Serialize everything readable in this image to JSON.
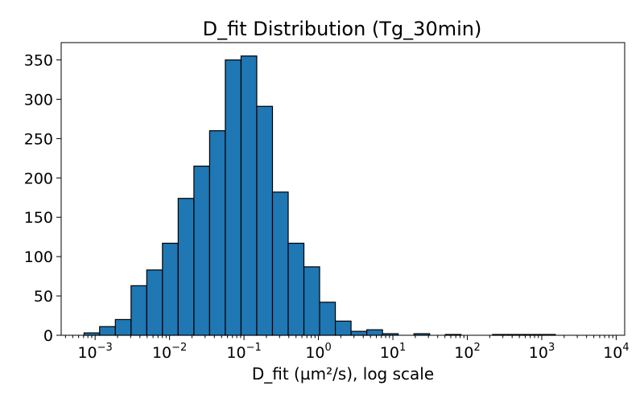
{
  "chart_data": {
    "type": "bar",
    "title": "D_fit Distribution (Tg_30min)",
    "xlabel": "D_fit (µm²/s), log scale",
    "ylabel": "",
    "x_scale": "log",
    "xlim": [
      0.00035,
      13000
    ],
    "ylim": [
      0,
      372
    ],
    "grid": false,
    "bar_color": "#1f77b4",
    "edge_color": "#000000",
    "x_ticks": [
      {
        "value": 0.001,
        "base": "10",
        "exp": "−3"
      },
      {
        "value": 0.01,
        "base": "10",
        "exp": "−2"
      },
      {
        "value": 0.1,
        "base": "10",
        "exp": "−1"
      },
      {
        "value": 1,
        "base": "10",
        "exp": "0"
      },
      {
        "value": 10,
        "base": "10",
        "exp": "1"
      },
      {
        "value": 100,
        "base": "10",
        "exp": "2"
      },
      {
        "value": 1000,
        "base": "10",
        "exp": "3"
      },
      {
        "value": 10000,
        "base": "10",
        "exp": "4"
      }
    ],
    "y_ticks": [
      0,
      50,
      100,
      150,
      200,
      250,
      300,
      350
    ],
    "bins": [
      {
        "x0": 0.00071,
        "x1": 0.00115,
        "count": 3
      },
      {
        "x0": 0.00115,
        "x1": 0.00187,
        "count": 11
      },
      {
        "x0": 0.00187,
        "x1": 0.00304,
        "count": 20
      },
      {
        "x0": 0.00304,
        "x1": 0.00494,
        "count": 63
      },
      {
        "x0": 0.00494,
        "x1": 0.00803,
        "count": 83
      },
      {
        "x0": 0.00803,
        "x1": 0.01306,
        "count": 117
      },
      {
        "x0": 0.01306,
        "x1": 0.02123,
        "count": 174
      },
      {
        "x0": 0.02123,
        "x1": 0.03452,
        "count": 215
      },
      {
        "x0": 0.03452,
        "x1": 0.05613,
        "count": 260
      },
      {
        "x0": 0.05613,
        "x1": 0.0913,
        "count": 350
      },
      {
        "x0": 0.0913,
        "x1": 0.1484,
        "count": 355
      },
      {
        "x0": 0.1484,
        "x1": 0.2413,
        "count": 291
      },
      {
        "x0": 0.2413,
        "x1": 0.3924,
        "count": 182
      },
      {
        "x0": 0.3924,
        "x1": 0.638,
        "count": 117
      },
      {
        "x0": 0.638,
        "x1": 1.037,
        "count": 87
      },
      {
        "x0": 1.037,
        "x1": 1.687,
        "count": 42
      },
      {
        "x0": 1.687,
        "x1": 2.742,
        "count": 18
      },
      {
        "x0": 2.742,
        "x1": 4.459,
        "count": 5
      },
      {
        "x0": 4.459,
        "x1": 7.25,
        "count": 7
      },
      {
        "x0": 7.25,
        "x1": 11.79,
        "count": 2
      },
      {
        "x0": 11.79,
        "x1": 19.17,
        "count": 0
      },
      {
        "x0": 19.17,
        "x1": 31.17,
        "count": 2
      },
      {
        "x0": 31.17,
        "x1": 50.68,
        "count": 0
      },
      {
        "x0": 50.68,
        "x1": 82.41,
        "count": 1
      },
      {
        "x0": 82.41,
        "x1": 134.0,
        "count": 0
      },
      {
        "x0": 134.0,
        "x1": 217.9,
        "count": 0
      },
      {
        "x0": 217.9,
        "x1": 354.3,
        "count": 1
      },
      {
        "x0": 354.3,
        "x1": 576.1,
        "count": 1
      },
      {
        "x0": 576.1,
        "x1": 936.7,
        "count": 1
      },
      {
        "x0": 936.7,
        "x1": 1523.0,
        "count": 1
      }
    ]
  }
}
